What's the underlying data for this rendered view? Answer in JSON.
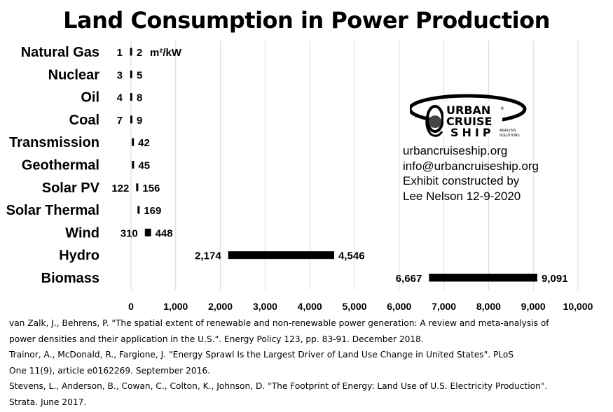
{
  "chart_data": {
    "type": "bar",
    "title": "Land Consumption in Power Production",
    "unit_label": "m²/kW",
    "xlim": [
      0,
      10000
    ],
    "xticks": [
      "0",
      "1,000",
      "2,000",
      "3,000",
      "4,000",
      "5,000",
      "6,000",
      "7,000",
      "8,000",
      "9,000",
      "10,000"
    ],
    "grid": true,
    "categories": [
      "Natural Gas",
      "Nuclear",
      "Oil",
      "Coal",
      "Transmission",
      "Geothermal",
      "Solar PV",
      "Solar Thermal",
      "Wind",
      "Hydro",
      "Biomass"
    ],
    "low": [
      1,
      3,
      4,
      7,
      42,
      45,
      122,
      169,
      310,
      2174,
      6667
    ],
    "high": [
      2,
      5,
      8,
      9,
      42,
      45,
      156,
      169,
      448,
      4546,
      9091
    ],
    "low_labels": [
      "1",
      "3",
      "4",
      "7",
      "",
      "",
      "122",
      "",
      "310",
      "2,174",
      "6,667"
    ],
    "high_labels": [
      "2",
      "5",
      "8",
      "9",
      "42",
      "45",
      "156",
      "169",
      "448",
      "4,546",
      "9,091"
    ],
    "bar_color": "#000000",
    "grid_color": "#d9d9d9"
  },
  "logo": {
    "line1": "URBAN",
    "line2": "CRUISE",
    "line3": "SHIP",
    "registered": "®",
    "tag1": "ANALYSIS",
    "tag2": "SOLUTIONS"
  },
  "info": {
    "website": "urbancruiseship.org",
    "email": "info@urbancruiseship.org",
    "credit1": "Exhibit constructed by",
    "credit2": "Lee Nelson 12-9-2020"
  },
  "references": [
    "van Zalk, J., Behrens, P. \"The spatial extent of renewable and non-renewable power generation: A review and meta-analysis of",
    "power densities and their application in the U.S.\". Energy Policy 123, pp. 83-91. December 2018.",
    "Trainor, A., McDonald, R., Fargione, J. \"Energy Sprawl Is the Largest Driver of Land Use Change in United States\". PLoS",
    "One 11(9), article e0162269. September 2016.",
    "Stevens, L., Anderson, B., Cowan, C., Colton, K., Johnson, D. \"The Footprint of Energy: Land Use of U.S. Electricity Production\".",
    "Strata. June 2017."
  ]
}
